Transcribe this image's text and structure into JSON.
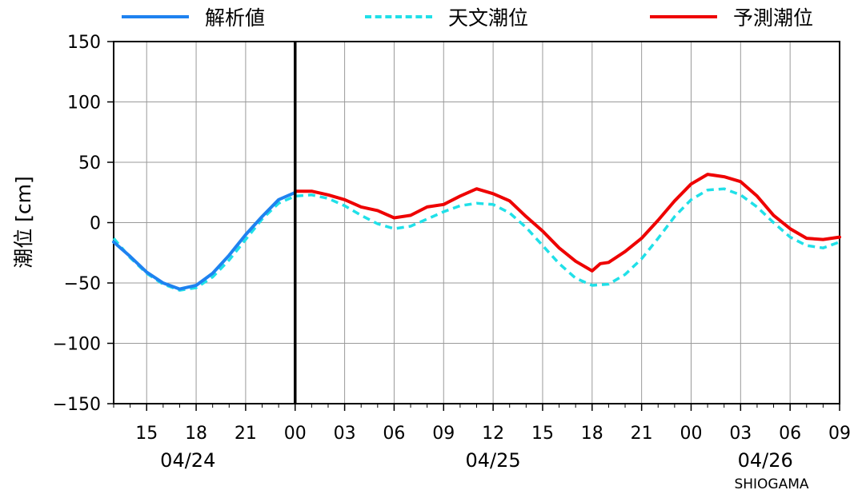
{
  "legend": [
    {
      "label": "解析値",
      "color": "#1e82f0",
      "style": "solid"
    },
    {
      "label": "天文潮位",
      "color": "#20e0e8",
      "style": "dashed"
    },
    {
      "label": "予測潮位",
      "color": "#ee0000",
      "style": "solid"
    }
  ],
  "station": "SHIOGAMA",
  "chart_data": {
    "type": "line",
    "ylabel": "潮位 [cm]",
    "ylim": [
      -150,
      150
    ],
    "yticks": [
      150,
      100,
      50,
      0,
      -50,
      -100,
      -150
    ],
    "ytick_labels": [
      "150",
      "100",
      "50",
      "0",
      "−50",
      "−100",
      "−150"
    ],
    "xlim": [
      "2024-04-24T13:00",
      "2024-04-26T09:00"
    ],
    "xticks": [
      "2024-04-24T15:00",
      "2024-04-24T18:00",
      "2024-04-24T21:00",
      "2024-04-25T00:00",
      "2024-04-25T03:00",
      "2024-04-25T06:00",
      "2024-04-25T09:00",
      "2024-04-25T12:00",
      "2024-04-25T15:00",
      "2024-04-25T18:00",
      "2024-04-25T21:00",
      "2024-04-26T00:00",
      "2024-04-26T03:00",
      "2024-04-26T06:00",
      "2024-04-26T09:00"
    ],
    "xtick_labels": [
      "15",
      "18",
      "21",
      "00",
      "03",
      "06",
      "09",
      "12",
      "15",
      "18",
      "21",
      "00",
      "03",
      "06",
      "09"
    ],
    "date_labels": [
      {
        "label": "04/24",
        "at": "2024-04-24T17:30"
      },
      {
        "label": "04/25",
        "at": "2024-04-25T12:00"
      },
      {
        "label": "04/26",
        "at": "2024-04-26T04:30"
      }
    ],
    "now_marker": "2024-04-25T00:00",
    "grid": true,
    "series": [
      {
        "name": "解析値",
        "color": "#1e82f0",
        "style": "solid",
        "x": [
          "2024-04-24T13:00",
          "2024-04-24T14:00",
          "2024-04-24T15:00",
          "2024-04-24T16:00",
          "2024-04-24T17:00",
          "2024-04-24T18:00",
          "2024-04-24T19:00",
          "2024-04-24T20:00",
          "2024-04-24T21:00",
          "2024-04-24T22:00",
          "2024-04-24T23:00",
          "2024-04-25T00:00"
        ],
        "values": [
          -16,
          -28,
          -41,
          -50,
          -55,
          -52,
          -42,
          -27,
          -10,
          5,
          19,
          25
        ]
      },
      {
        "name": "天文潮位",
        "color": "#20e0e8",
        "style": "dashed",
        "x": [
          "2024-04-24T13:00",
          "2024-04-24T14:00",
          "2024-04-24T15:00",
          "2024-04-24T16:00",
          "2024-04-24T17:00",
          "2024-04-24T18:00",
          "2024-04-24T19:00",
          "2024-04-24T20:00",
          "2024-04-24T21:00",
          "2024-04-24T22:00",
          "2024-04-24T23:00",
          "2024-04-25T00:00",
          "2024-04-25T01:00",
          "2024-04-25T02:00",
          "2024-04-25T03:00",
          "2024-04-25T04:00",
          "2024-04-25T05:00",
          "2024-04-25T06:00",
          "2024-04-25T07:00",
          "2024-04-25T08:00",
          "2024-04-25T09:00",
          "2024-04-25T10:00",
          "2024-04-25T11:00",
          "2024-04-25T12:00",
          "2024-04-25T13:00",
          "2024-04-25T14:00",
          "2024-04-25T15:00",
          "2024-04-25T16:00",
          "2024-04-25T17:00",
          "2024-04-25T18:00",
          "2024-04-25T19:00",
          "2024-04-25T20:00",
          "2024-04-25T21:00",
          "2024-04-25T22:00",
          "2024-04-25T23:00",
          "2024-04-26T00:00",
          "2024-04-26T01:00",
          "2024-04-26T02:00",
          "2024-04-26T03:00",
          "2024-04-26T04:00",
          "2024-04-26T05:00",
          "2024-04-26T06:00",
          "2024-04-26T07:00",
          "2024-04-26T08:00",
          "2024-04-26T09:00"
        ],
        "values": [
          -13,
          -29,
          -42,
          -51,
          -56,
          -54,
          -45,
          -31,
          -14,
          3,
          16,
          22,
          23,
          20,
          14,
          6,
          -1,
          -5,
          -3,
          3,
          9,
          14,
          16,
          15,
          8,
          -4,
          -19,
          -34,
          -46,
          -52,
          -51,
          -43,
          -30,
          -13,
          5,
          19,
          27,
          28,
          23,
          13,
          0,
          -12,
          -19,
          -21,
          -16
        ]
      },
      {
        "name": "予測潮位",
        "color": "#ee0000",
        "style": "solid",
        "x": [
          "2024-04-25T00:00",
          "2024-04-25T01:00",
          "2024-04-25T02:00",
          "2024-04-25T03:00",
          "2024-04-25T04:00",
          "2024-04-25T05:00",
          "2024-04-25T06:00",
          "2024-04-25T07:00",
          "2024-04-25T08:00",
          "2024-04-25T09:00",
          "2024-04-25T10:00",
          "2024-04-25T11:00",
          "2024-04-25T12:00",
          "2024-04-25T13:00",
          "2024-04-25T14:00",
          "2024-04-25T15:00",
          "2024-04-25T16:00",
          "2024-04-25T17:00",
          "2024-04-25T18:00",
          "2024-04-25T18:30",
          "2024-04-25T19:00",
          "2024-04-25T20:00",
          "2024-04-25T21:00",
          "2024-04-25T22:00",
          "2024-04-25T23:00",
          "2024-04-26T00:00",
          "2024-04-26T01:00",
          "2024-04-26T02:00",
          "2024-04-26T03:00",
          "2024-04-26T04:00",
          "2024-04-26T05:00",
          "2024-04-26T06:00",
          "2024-04-26T07:00",
          "2024-04-26T08:00",
          "2024-04-26T09:00"
        ],
        "values": [
          26,
          26,
          23,
          19,
          13,
          10,
          4,
          6,
          13,
          15,
          22,
          28,
          24,
          18,
          5,
          -7,
          -21,
          -32,
          -40,
          -34,
          -33,
          -24,
          -13,
          2,
          18,
          32,
          40,
          38,
          34,
          22,
          6,
          -5,
          -13,
          -14,
          -12
        ]
      }
    ]
  }
}
